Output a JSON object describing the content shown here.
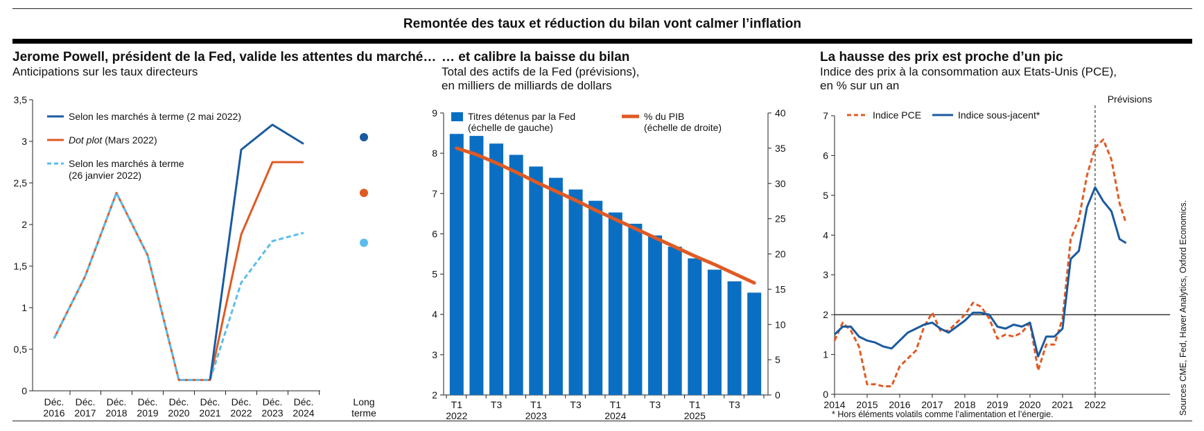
{
  "header": {
    "title": "Remontée des taux et réduction du bilan vont calmer l’inflation"
  },
  "colors": {
    "blue_dark": "#1a5a9e",
    "orange": "#e05a23",
    "blue_light": "#5bbcec",
    "bar_blue": "#0a6fc2",
    "black": "#000000"
  },
  "panel1": {
    "title": "Jerome Powell, président de la Fed, valide les attentes du marché…",
    "subtitle": "Anticipations sur les taux directeurs",
    "legend": {
      "forward_may": "Selon les marchés à terme (2 mai 2022)",
      "dotplot_italic": "Dot plot",
      "dotplot_rest": " (Mars 2022)",
      "forward_jan_line1": "Selon les marchés à terme",
      "forward_jan_line2": "(26 janvier 2022)"
    }
  },
  "panel2": {
    "title": "… et calibre la baisse du bilan",
    "subtitle_line1": "Total des actifs de la Fed (prévisions),",
    "subtitle_line2": "en milliers de milliards de dollars",
    "legend": {
      "bars_line1": "Titres détenus par la Fed",
      "bars_line2": "(échelle de gauche)",
      "line_line1": "% du PIB",
      "line_line2": "(échelle de droite)"
    }
  },
  "panel3": {
    "title": "La hausse des prix est proche d’un pic",
    "subtitle_line1": "Indice des prix à la consommation aux Etats-Unis (PCE),",
    "subtitle_line2": "en % sur un an",
    "previsions_label": "Prévisions",
    "legend": {
      "pce": "Indice PCE",
      "core": "Indice sous-jacent*"
    },
    "note": "* Hors éléments volatils comme l’alimentation et l’énergie."
  },
  "sources": "Sources CME, Fed, Haver Analytics, Oxford Economics.",
  "chart_data": [
    {
      "type": "line",
      "categories": [
        [
          "Déc.",
          "2016"
        ],
        [
          "Déc.",
          "2017"
        ],
        [
          "Déc.",
          "2018"
        ],
        [
          "Déc.",
          "2019"
        ],
        [
          "Déc.",
          "2020"
        ],
        [
          "Déc.",
          "2021"
        ],
        [
          "Déc.",
          "2022"
        ],
        [
          "Déc.",
          "2023"
        ],
        [
          "Déc.",
          "2024"
        ],
        [
          "Long",
          "terme"
        ]
      ],
      "y_ticks": [
        "0",
        "0,5",
        "1",
        "1,5",
        "2",
        "2,5",
        "3",
        "3,5"
      ],
      "ylim": [
        0,
        3.5
      ],
      "series": [
        {
          "name": "Selon les marchés à terme (2 mai 2022)",
          "style": "solid",
          "color": "#1a5a9e",
          "values": [
            null,
            null,
            null,
            null,
            null,
            0.13,
            2.9,
            3.2,
            2.97,
            3.05
          ]
        },
        {
          "name": "Dot plot (Mars 2022)",
          "style": "solid",
          "color": "#e05a23",
          "values": [
            0.63,
            1.38,
            2.38,
            1.63,
            0.13,
            0.13,
            1.88,
            2.75,
            2.75,
            2.38
          ]
        },
        {
          "name": "Selon les marchés à terme (26 janvier 2022)",
          "style": "dashed",
          "color": "#5bbcec",
          "values": [
            0.63,
            1.38,
            2.38,
            1.63,
            0.13,
            0.13,
            1.3,
            1.8,
            1.9,
            1.78
          ]
        }
      ]
    },
    {
      "type": "bar",
      "x_ticks": [
        {
          "i": 0,
          "line1": "T1",
          "line2": "2022"
        },
        {
          "i": 2,
          "line1": "T3",
          "line2": ""
        },
        {
          "i": 4,
          "line1": "T1",
          "line2": "2023"
        },
        {
          "i": 6,
          "line1": "T3",
          "line2": ""
        },
        {
          "i": 8,
          "line1": "T1",
          "line2": "2024"
        },
        {
          "i": 10,
          "line1": "T3",
          "line2": ""
        },
        {
          "i": 12,
          "line1": "T1",
          "line2": "2025"
        },
        {
          "i": 14,
          "line1": "T3",
          "line2": ""
        }
      ],
      "series": [
        {
          "name": "Titres détenus par la Fed",
          "axis": "left",
          "values": [
            8.48,
            8.43,
            8.24,
            7.96,
            7.67,
            7.39,
            7.1,
            6.82,
            6.53,
            6.25,
            5.96,
            5.68,
            5.39,
            5.11,
            4.82,
            4.54
          ]
        },
        {
          "name": "% du PIB",
          "axis": "right",
          "values": [
            35.0,
            34.1,
            32.9,
            31.6,
            30.2,
            28.9,
            27.6,
            26.2,
            24.9,
            23.6,
            22.3,
            21.0,
            19.7,
            18.5,
            17.2,
            15.9
          ]
        }
      ],
      "ylim_left": [
        2,
        9
      ],
      "ylim_right": [
        0,
        40
      ],
      "y_ticks_left": [
        "2",
        "3",
        "4",
        "5",
        "6",
        "7",
        "8",
        "9"
      ],
      "y_ticks_right": [
        "0",
        "5",
        "10",
        "15",
        "20",
        "25",
        "30",
        "35",
        "40"
      ]
    },
    {
      "type": "line",
      "x_ticks": [
        "2014",
        "2015",
        "2016",
        "2017",
        "2018",
        "2019",
        "2020",
        "2021",
        "2022"
      ],
      "xlim": [
        2014,
        2024.3
      ],
      "ylim": [
        0,
        7
      ],
      "y_ticks": [
        "0",
        "1",
        "2",
        "3",
        "4",
        "5",
        "6",
        "7"
      ],
      "reference_line_y": 2,
      "forecast_start_x": 2022,
      "series": [
        {
          "name": "Indice PCE",
          "style": "dashed",
          "color": "#e05a23",
          "x": [
            2014,
            2014.25,
            2014.5,
            2014.75,
            2015,
            2015.25,
            2015.5,
            2015.75,
            2016,
            2016.25,
            2016.5,
            2016.75,
            2017,
            2017.25,
            2017.5,
            2017.75,
            2018,
            2018.25,
            2018.5,
            2018.75,
            2019,
            2019.25,
            2019.5,
            2019.75,
            2020,
            2020.25,
            2020.5,
            2020.75,
            2021,
            2021.25,
            2021.5,
            2021.75,
            2022,
            2022.25,
            2022.5,
            2022.75,
            2022.95
          ],
          "values": [
            1.35,
            1.8,
            1.6,
            1.2,
            0.25,
            0.25,
            0.2,
            0.2,
            0.7,
            0.9,
            1.1,
            1.7,
            2.05,
            1.6,
            1.6,
            1.8,
            2.0,
            2.3,
            2.2,
            1.9,
            1.4,
            1.5,
            1.45,
            1.55,
            1.8,
            0.6,
            1.25,
            1.25,
            1.9,
            3.9,
            4.4,
            5.5,
            6.2,
            6.4,
            5.9,
            4.8,
            4.3
          ]
        },
        {
          "name": "Indice sous-jacent*",
          "style": "solid",
          "color": "#1a5a9e",
          "x": [
            2014,
            2014.25,
            2014.5,
            2014.75,
            2015,
            2015.25,
            2015.5,
            2015.75,
            2016,
            2016.25,
            2016.5,
            2016.75,
            2017,
            2017.25,
            2017.5,
            2017.75,
            2018,
            2018.25,
            2018.5,
            2018.75,
            2019,
            2019.25,
            2019.5,
            2019.75,
            2020,
            2020.25,
            2020.5,
            2020.75,
            2021,
            2021.25,
            2021.5,
            2021.75,
            2022,
            2022.25,
            2022.5,
            2022.75,
            2022.95
          ],
          "values": [
            1.5,
            1.7,
            1.7,
            1.45,
            1.35,
            1.3,
            1.2,
            1.15,
            1.35,
            1.55,
            1.65,
            1.75,
            1.8,
            1.65,
            1.55,
            1.7,
            1.85,
            2.05,
            2.05,
            2.0,
            1.7,
            1.65,
            1.75,
            1.7,
            1.8,
            0.95,
            1.45,
            1.45,
            1.65,
            3.4,
            3.6,
            4.7,
            5.2,
            4.85,
            4.6,
            3.9,
            3.8
          ]
        }
      ]
    }
  ]
}
